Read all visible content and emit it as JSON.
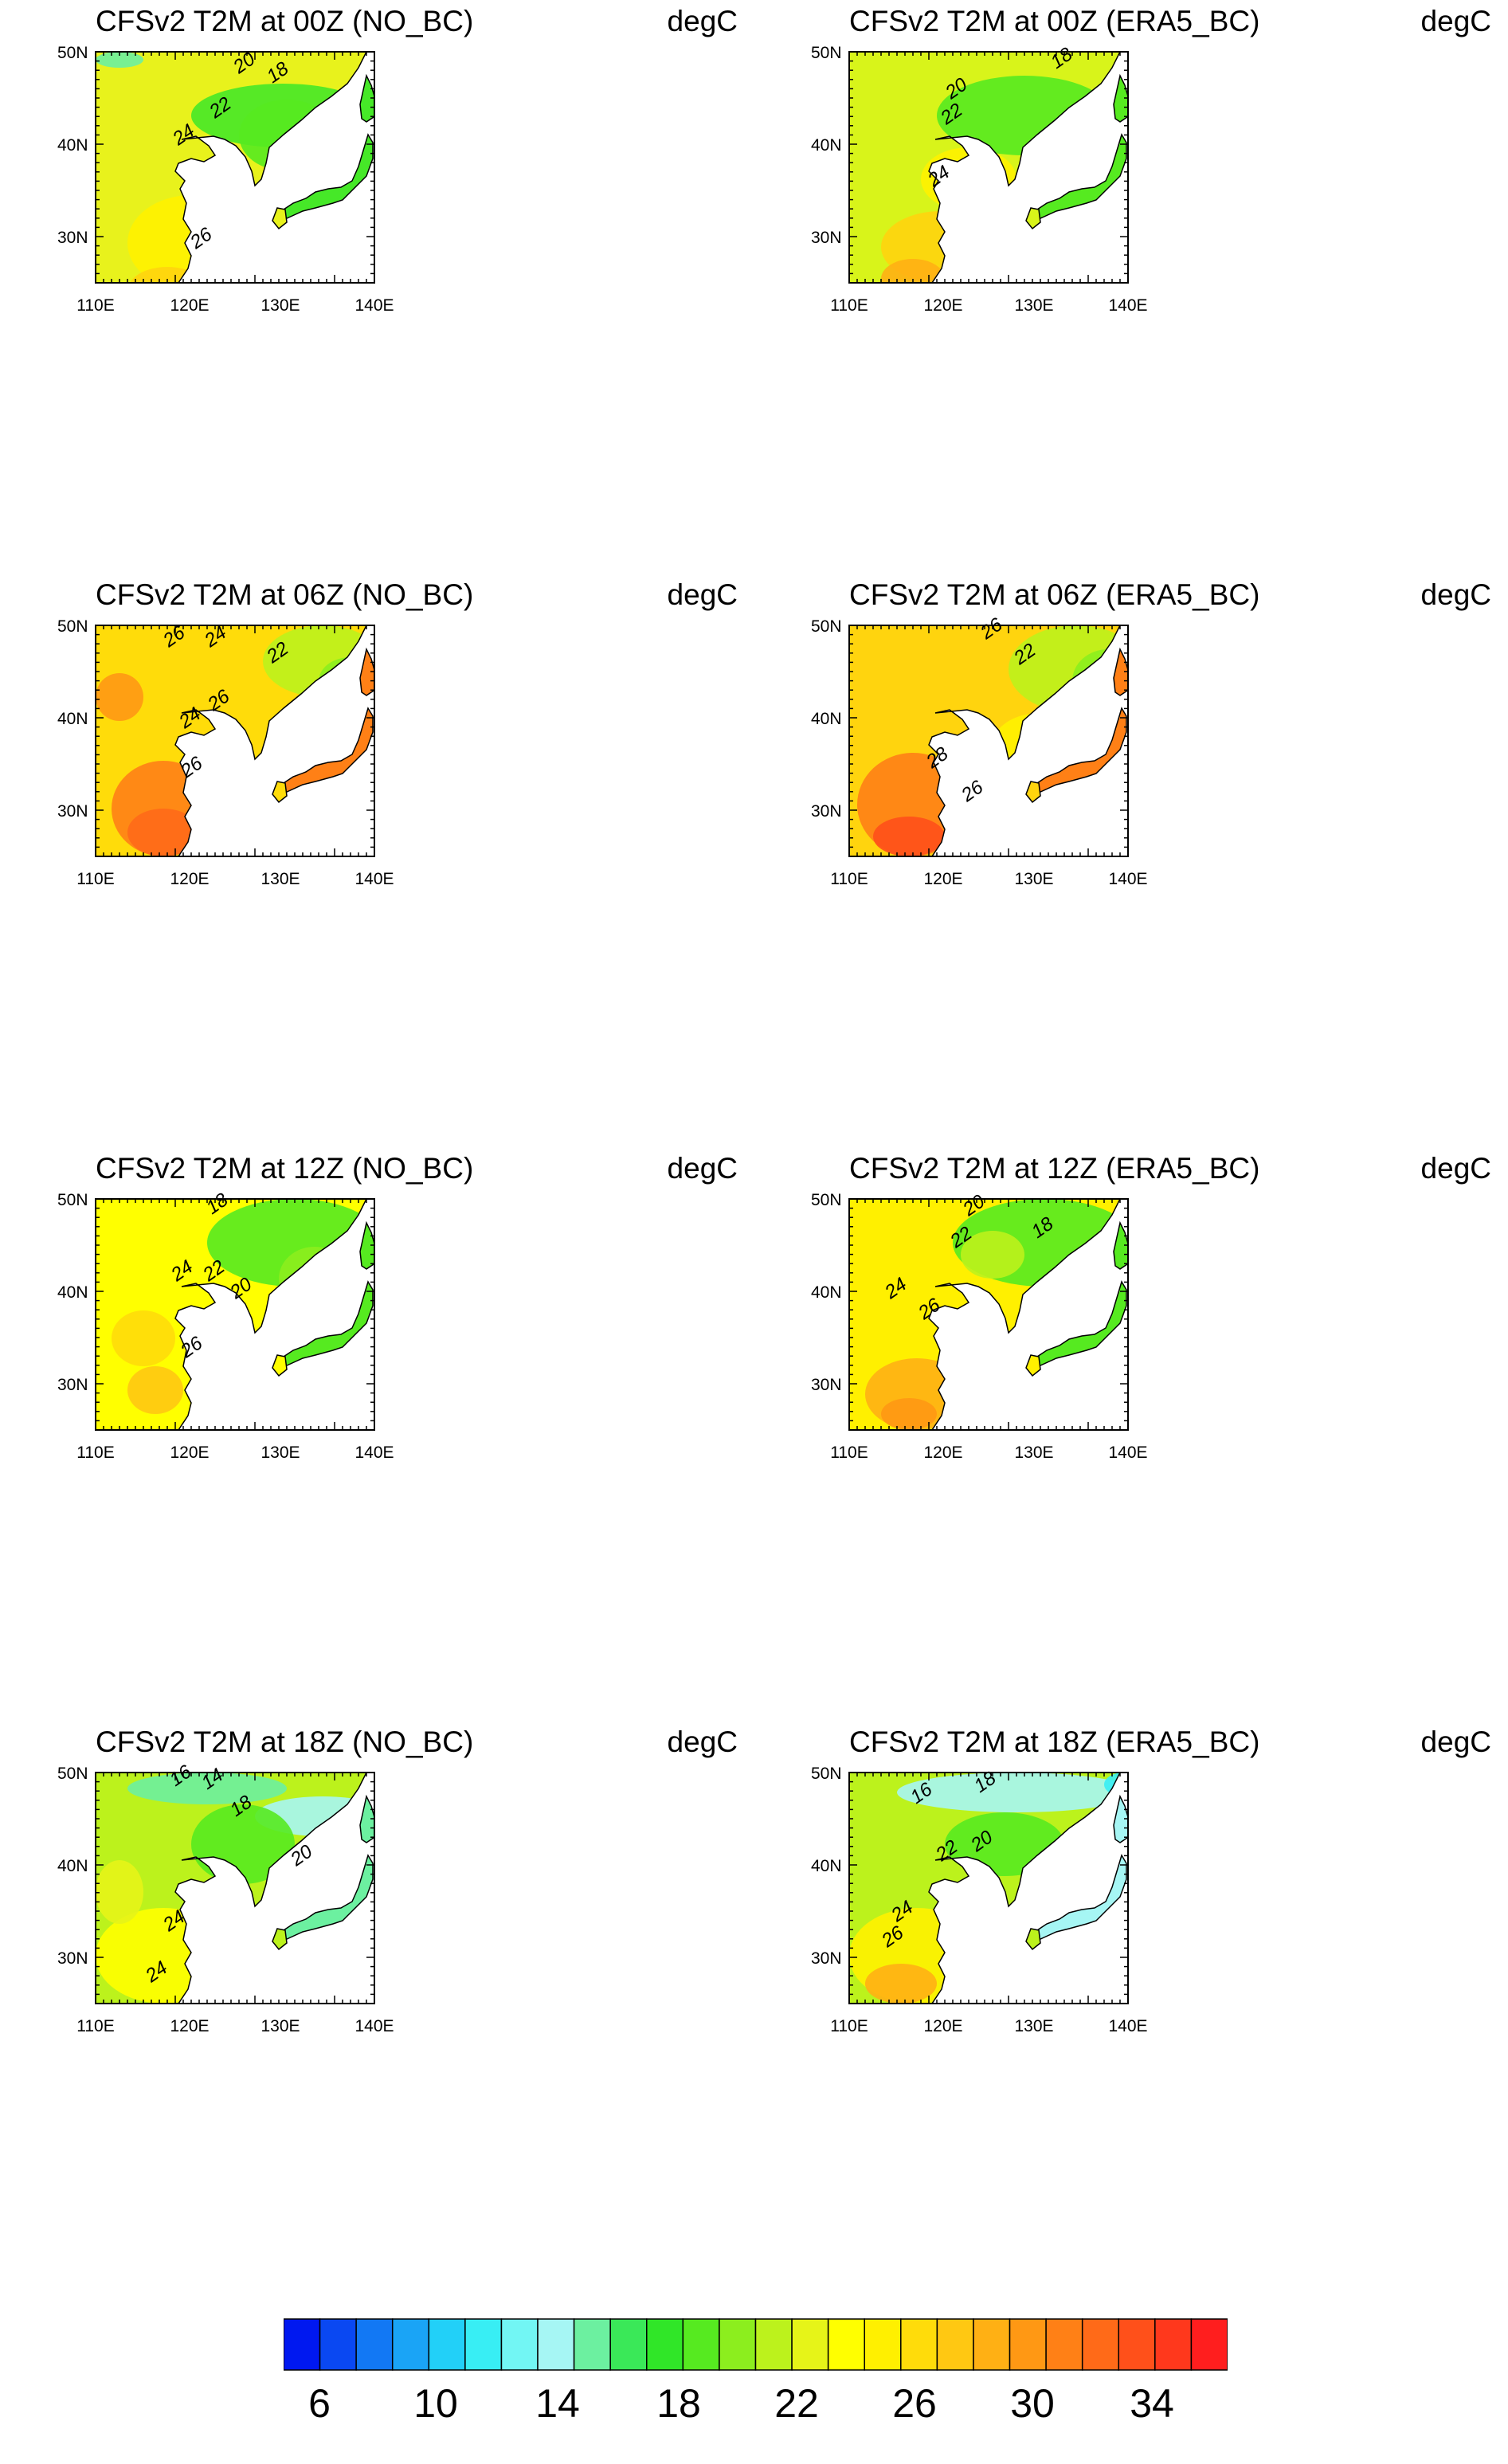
{
  "panels": [
    {
      "title": "CFSv2 T2M at 00Z (NO_BC)",
      "units": "degC",
      "palette": "cool",
      "contours": [
        "20",
        "18",
        "22",
        "24",
        "26"
      ]
    },
    {
      "title": "CFSv2 T2M at 00Z (ERA5_BC)",
      "units": "degC",
      "palette": "cool2",
      "contours": [
        "18",
        "20",
        "22",
        "24"
      ]
    },
    {
      "title": "CFSv2 T2M at 06Z (NO_BC)",
      "units": "degC",
      "palette": "hot",
      "contours": [
        "26",
        "24",
        "22",
        "26",
        "24",
        "26"
      ]
    },
    {
      "title": "CFSv2 T2M at 06Z (ERA5_BC)",
      "units": "degC",
      "palette": "hot2",
      "contours": [
        "26",
        "22",
        "28",
        "26"
      ]
    },
    {
      "title": "CFSv2 T2M at 12Z (NO_BC)",
      "units": "degC",
      "palette": "mid",
      "contours": [
        "18",
        "24",
        "22",
        "20",
        "26"
      ]
    },
    {
      "title": "CFSv2 T2M at 12Z (ERA5_BC)",
      "units": "degC",
      "palette": "mid2",
      "contours": [
        "20",
        "22",
        "18",
        "24",
        "26"
      ]
    },
    {
      "title": "CFSv2 T2M at 18Z (NO_BC)",
      "units": "degC",
      "palette": "cold",
      "contours": [
        "16",
        "14",
        "18",
        "20",
        "24",
        "24"
      ]
    },
    {
      "title": "CFSv2 T2M at 18Z (ERA5_BC)",
      "units": "degC",
      "palette": "cold2",
      "contours": [
        "18",
        "16",
        "22",
        "20",
        "24",
        "26"
      ]
    }
  ],
  "lat_labels": [
    "50N",
    "40N",
    "30N"
  ],
  "lon_labels": [
    "110E",
    "120E",
    "130E",
    "140E"
  ],
  "colorbar": {
    "colors": [
      "#0018f0",
      "#0a48f2",
      "#1278f4",
      "#1aa4f6",
      "#22d0f8",
      "#38eef4",
      "#72f6f4",
      "#a6f6f4",
      "#6cf0a0",
      "#3ae858",
      "#30e628",
      "#56ea20",
      "#8cee1e",
      "#bcf21c",
      "#e6f418",
      "#ffff00",
      "#fff000",
      "#ffdc0a",
      "#ffc812",
      "#ffb014",
      "#ff9814",
      "#ff8016",
      "#ff6a18",
      "#ff501a",
      "#ff381c",
      "#ff1e1e"
    ],
    "labels": [
      "6",
      "10",
      "14",
      "18",
      "22",
      "26",
      "30",
      "34"
    ]
  }
}
